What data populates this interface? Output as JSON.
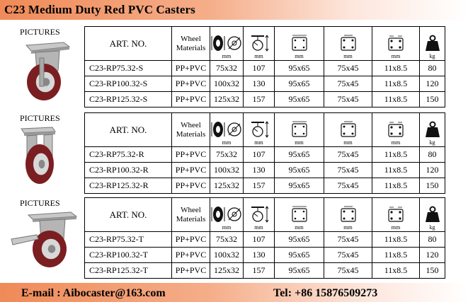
{
  "page": {
    "title": "C23 Medium Duty Red PVC Casters"
  },
  "columns": {
    "art_no": "ART. NO.",
    "wheel_materials": [
      "Wheel",
      "Materials"
    ],
    "icons": [
      "wheel-size-icon",
      "total-height-icon",
      "plate-size-icon",
      "hole-spacing-icon",
      "bolt-hole-icon",
      "load-capacity-icon"
    ],
    "units": [
      "mm",
      "mm",
      "mm",
      "mm",
      "mm",
      "kg"
    ]
  },
  "sections": [
    {
      "pictures_label": "PICTURES",
      "type": "swivel",
      "rows": [
        {
          "art_no": "C23-RP75.32-S",
          "material": "PP+PVC",
          "wheel": "75x32",
          "height": "107",
          "plate": "95x65",
          "holes": "75x45",
          "bolt": "11x8.5",
          "load": "80"
        },
        {
          "art_no": "C23-RP100.32-S",
          "material": "PP+PVC",
          "wheel": "100x32",
          "height": "130",
          "plate": "95x65",
          "holes": "75x45",
          "bolt": "11x8.5",
          "load": "120"
        },
        {
          "art_no": "C23-RP125.32-S",
          "material": "PP+PVC",
          "wheel": "125x32",
          "height": "157",
          "plate": "95x65",
          "holes": "75x45",
          "bolt": "11x8.5",
          "load": "150"
        }
      ]
    },
    {
      "pictures_label": "PICTURES",
      "type": "rigid",
      "rows": [
        {
          "art_no": "C23-RP75.32-R",
          "material": "PP+PVC",
          "wheel": "75x32",
          "height": "107",
          "plate": "95x65",
          "holes": "75x45",
          "bolt": "11x8.5",
          "load": "80"
        },
        {
          "art_no": "C23-RP100.32-R",
          "material": "PP+PVC",
          "wheel": "100x32",
          "height": "130",
          "plate": "95x65",
          "holes": "75x45",
          "bolt": "11x8.5",
          "load": "120"
        },
        {
          "art_no": "C23-RP125.32-R",
          "material": "PP+PVC",
          "wheel": "125x32",
          "height": "157",
          "plate": "95x65",
          "holes": "75x45",
          "bolt": "11x8.5",
          "load": "150"
        }
      ]
    },
    {
      "pictures_label": "PICTURES",
      "type": "brake",
      "rows": [
        {
          "art_no": "C23-RP75.32-T",
          "material": "PP+PVC",
          "wheel": "75x32",
          "height": "107",
          "plate": "95x65",
          "holes": "75x45",
          "bolt": "11x8.5",
          "load": "80"
        },
        {
          "art_no": "C23-RP100.32-T",
          "material": "PP+PVC",
          "wheel": "100x32",
          "height": "130",
          "plate": "95x65",
          "holes": "75x45",
          "bolt": "11x8.5",
          "load": "120"
        },
        {
          "art_no": "C23-RP125.32-T",
          "material": "PP+PVC",
          "wheel": "125x32",
          "height": "157",
          "plate": "95x65",
          "holes": "75x45",
          "bolt": "11x8.5",
          "load": "150"
        }
      ]
    }
  ],
  "footer": {
    "email": "E-mail : Aibocaster@163.com",
    "tel": "Tel: +86 15876509273"
  },
  "colors": {
    "banner": "#f08a58",
    "wheel": "#7a1e22",
    "wheel_hub": "#d8d8d8",
    "metal": "#c8c8c8"
  }
}
